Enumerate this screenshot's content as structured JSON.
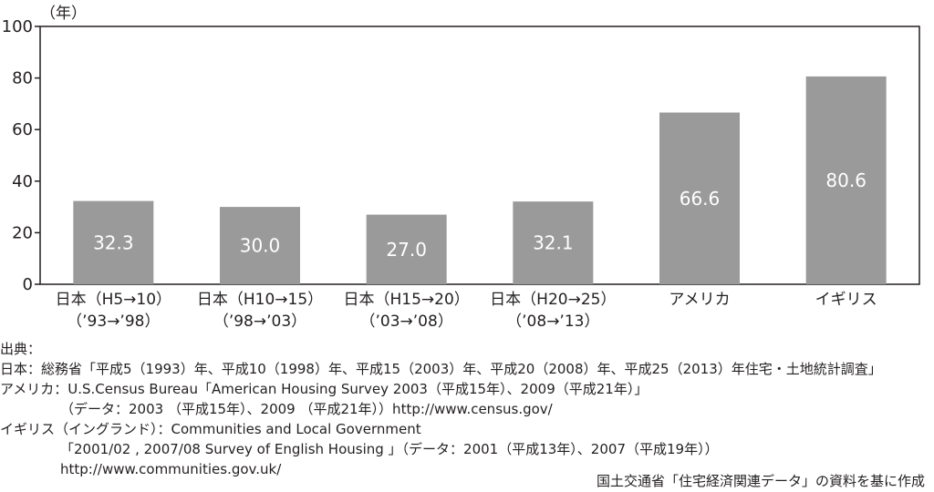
{
  "chart_data": {
    "type": "bar",
    "unit_label": "（年）",
    "categories": [
      [
        "日本（H5→10）",
        "（’93→’98）"
      ],
      [
        "日本（H10→15）",
        "（’98→’03）"
      ],
      [
        "日本（H15→20）",
        "（’03→’08）"
      ],
      [
        "日本（H20→25）",
        "（’08→’13）"
      ],
      [
        "アメリカ"
      ],
      [
        "イギリス"
      ]
    ],
    "values": [
      32.3,
      30.0,
      27.0,
      32.1,
      66.6,
      80.6
    ],
    "value_labels": [
      "32.3",
      "30.0",
      "27.0",
      "32.1",
      "66.6",
      "80.6"
    ],
    "yticks": [
      "0",
      "20",
      "40",
      "60",
      "80",
      "100"
    ],
    "ylim": [
      0,
      100
    ],
    "bar_color": "#9a9a9a",
    "grid": false
  },
  "sources": {
    "heading": "出典：",
    "japan": "日本：総務省「平成5（1993）年、平成10（1998）年、平成15（2003）年、平成20（2008）年、平成25（2013）年住宅・土地統計調査」",
    "usa_1": "アメリカ：U.S.Census Bureau「American Housing Survey 2003（平成15年）、2009（平成21年）」",
    "usa_2": "（データ：2003 （平成15年）、2009 （平成21年））http://www.census.gov/",
    "uk_1": "イギリス（イングランド）：Communities and Local Government",
    "uk_2": "「2001/02 , 2007/08 Survey of English Housing 」（データ：2001（平成13年）、2007（平成19年））",
    "uk_3": "http://www.communities.gov.uk/"
  },
  "credit": "国土交通省「住宅経済関連データ」の資料を基に作成"
}
